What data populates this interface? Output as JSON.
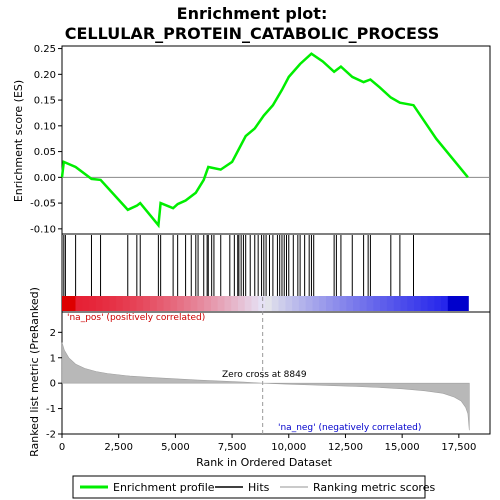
{
  "chart_data": {
    "type": "line",
    "title_line1": "Enrichment plot:",
    "title_line2": "CELLULAR_PROTEIN_CATABOLIC_PROCESS",
    "ylabel_top": "Enrichment score (ES)",
    "ylabel_bottom": "Ranked list metric (PreRanked)",
    "xlabel": "Rank in Ordered Dataset",
    "xlim": [
      0,
      18000
    ],
    "ylim_top": [
      -0.11,
      0.255
    ],
    "ylim_bottom": [
      -2,
      2.8
    ],
    "x_ticks": [
      0,
      2500,
      5000,
      7500,
      10000,
      12500,
      15000,
      17500
    ],
    "x_tick_labels": [
      "0",
      "2,500",
      "5,000",
      "7,500",
      "10,000",
      "12,500",
      "15,000",
      "17,500"
    ],
    "y_ticks_top": [
      -0.1,
      -0.05,
      0.0,
      0.05,
      0.1,
      0.15,
      0.2,
      0.25
    ],
    "y_tick_labels_top": [
      "-0.10",
      "-0.05",
      "0.00",
      "0.05",
      "0.10",
      "0.15",
      "0.20",
      "0.25"
    ],
    "y_ticks_bottom": [
      -2,
      -1,
      0,
      1,
      2
    ],
    "y_tick_labels_bottom": [
      "-2",
      "-1",
      "0",
      "1",
      "2"
    ],
    "zero_cross_label": "Zero cross at 8849",
    "zero_cross_rank": 8849,
    "na_pos_label": "'na_pos' (positively correlated)",
    "na_neg_label": "'na_neg' (negatively correlated)",
    "legend": [
      "Enrichment profile",
      "Hits",
      "Ranking metric scores"
    ],
    "colors": {
      "enrichment": "#00ee00",
      "hits": "#000000",
      "metric": "#b8b8b8",
      "na_pos": "#dd0000",
      "na_neg": "#0000cc",
      "zero_line": "#999999"
    },
    "enrichment_profile": [
      [
        0,
        0.0
      ],
      [
        80,
        0.03
      ],
      [
        600,
        0.02
      ],
      [
        1300,
        -0.003
      ],
      [
        1700,
        -0.005
      ],
      [
        2900,
        -0.063
      ],
      [
        3300,
        -0.055
      ],
      [
        3450,
        -0.05
      ],
      [
        4250,
        -0.093
      ],
      [
        4350,
        -0.05
      ],
      [
        4900,
        -0.06
      ],
      [
        5100,
        -0.052
      ],
      [
        5450,
        -0.045
      ],
      [
        5900,
        -0.03
      ],
      [
        6250,
        -0.005
      ],
      [
        6450,
        0.02
      ],
      [
        7000,
        0.015
      ],
      [
        7500,
        0.03
      ],
      [
        7800,
        0.055
      ],
      [
        8100,
        0.08
      ],
      [
        8500,
        0.095
      ],
      [
        8900,
        0.12
      ],
      [
        9300,
        0.14
      ],
      [
        9700,
        0.17
      ],
      [
        10000,
        0.195
      ],
      [
        10500,
        0.22
      ],
      [
        11000,
        0.24
      ],
      [
        11500,
        0.225
      ],
      [
        12000,
        0.205
      ],
      [
        12300,
        0.215
      ],
      [
        12800,
        0.195
      ],
      [
        13300,
        0.185
      ],
      [
        13600,
        0.19
      ],
      [
        14000,
        0.175
      ],
      [
        14500,
        0.155
      ],
      [
        14900,
        0.145
      ],
      [
        15500,
        0.14
      ],
      [
        16500,
        0.075
      ],
      [
        17900,
        0.0
      ]
    ],
    "hit_ranks": [
      80,
      150,
      600,
      1300,
      1700,
      2900,
      3300,
      3450,
      4250,
      4350,
      4900,
      5100,
      5450,
      5700,
      5900,
      6000,
      6250,
      6400,
      6450,
      6600,
      6700,
      7000,
      7400,
      7600,
      7750,
      7800,
      7900,
      8000,
      8100,
      8300,
      8500,
      8650,
      8800,
      8900,
      9000,
      9150,
      9300,
      9500,
      9600,
      9700,
      9800,
      9900,
      10000,
      10200,
      10400,
      10500,
      10700,
      10900,
      11000,
      11100,
      12000,
      12100,
      12300,
      12800,
      13300,
      13500,
      13600,
      14500,
      14900,
      15500
    ],
    "ranking_metric": [
      [
        0,
        1.6
      ],
      [
        100,
        1.3
      ],
      [
        300,
        1.0
      ],
      [
        600,
        0.75
      ],
      [
        1000,
        0.58
      ],
      [
        1500,
        0.46
      ],
      [
        2000,
        0.38
      ],
      [
        3000,
        0.28
      ],
      [
        4000,
        0.22
      ],
      [
        5000,
        0.17
      ],
      [
        6000,
        0.12
      ],
      [
        7000,
        0.08
      ],
      [
        8000,
        0.04
      ],
      [
        8849,
        0.0
      ],
      [
        10000,
        -0.04
      ],
      [
        11000,
        -0.07
      ],
      [
        12000,
        -0.1
      ],
      [
        13000,
        -0.13
      ],
      [
        14000,
        -0.17
      ],
      [
        15000,
        -0.22
      ],
      [
        16000,
        -0.3
      ],
      [
        16800,
        -0.4
      ],
      [
        17300,
        -0.55
      ],
      [
        17600,
        -0.7
      ],
      [
        17800,
        -0.95
      ],
      [
        17900,
        -1.2
      ],
      [
        17960,
        -1.85
      ]
    ]
  }
}
